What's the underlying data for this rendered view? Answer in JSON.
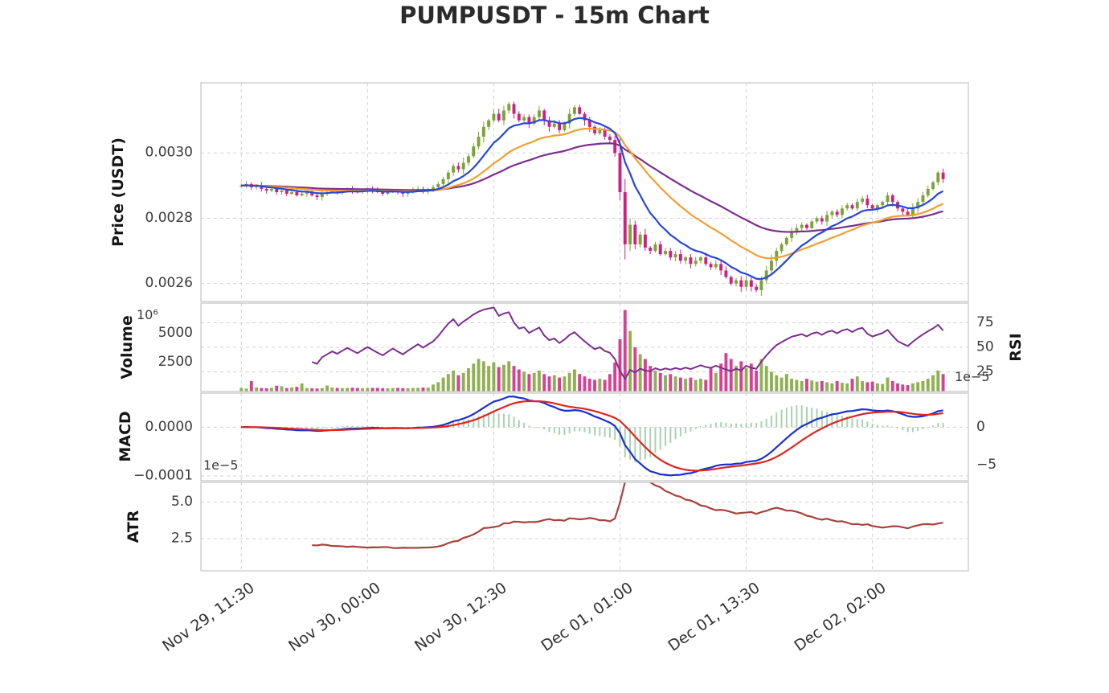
{
  "title": "PUMPUSDT - 15m Chart",
  "colors": {
    "background": "#ffffff",
    "up": "#7ca334",
    "down": "#cf2081",
    "ma_fast": "#2746d8",
    "ma_mid": "#f0a030",
    "ma_slow": "#7b2f8e",
    "rsi": "#7b2f8e",
    "macd_line": "#1b2fd0",
    "signal_line": "#e02420",
    "histogram": "#93c59c",
    "atr": "#a8423a",
    "grid": "#d2d2d2",
    "spine": "#c4c4c4",
    "tick_text": "#3a3a3a"
  },
  "chart_data": {
    "type": "candlestick",
    "title": "PUMPUSDT - 15m Chart",
    "x_ticks": {
      "indices": [
        0,
        25,
        50,
        75,
        100,
        125
      ],
      "labels": [
        "Nov 29, 11:30",
        "Nov 30, 00:00",
        "Nov 30, 12:30",
        "Dec 01, 01:00",
        "Dec 01, 13:30",
        "Dec 02, 02:00"
      ]
    },
    "panels": [
      {
        "id": "price",
        "ylabel": "Price (USDT)",
        "ylim": [
          0.002545,
          0.003215
        ],
        "yticks": [
          [
            0.0026,
            "0.0026"
          ],
          [
            0.0028,
            "0.0028"
          ],
          [
            0.003,
            "0.0030"
          ]
        ]
      },
      {
        "id": "volume",
        "ylabel": "Volume",
        "offset_text": "10⁶",
        "ylim": [
          0,
          7600
        ],
        "yticks": [
          [
            2500,
            "2500"
          ],
          [
            5000,
            "5000"
          ]
        ],
        "right": {
          "label": "RSI",
          "ylim": [
            5,
            95
          ],
          "yticks": [
            [
              25,
              "25"
            ],
            [
              50,
              "50"
            ],
            [
              75,
              "75"
            ]
          ]
        }
      },
      {
        "id": "macd",
        "ylabel": "MACD",
        "ylim": [
          -0.00011,
          7e-05
        ],
        "yticks": [
          [
            0,
            "0.0000"
          ],
          [
            -0.0001,
            "−0.0001"
          ]
        ],
        "right": {
          "offset_text": "1e−5",
          "ylim": [
            -7.07e-05,
            4.5e-05
          ],
          "yticks": [
            [
              0,
              "0"
            ],
            [
              -5e-05,
              "−5"
            ]
          ]
        }
      },
      {
        "id": "atr",
        "ylabel": "ATR",
        "offset_text": "1e−5",
        "ylim": [
          3e-06,
          6.35e-05
        ],
        "yticks": [
          [
            2.5e-05,
            "2.5"
          ],
          [
            5e-05,
            "5.0"
          ]
        ]
      }
    ],
    "indicators": {
      "ma_periods": [
        10,
        25,
        50
      ],
      "macd": [
        12,
        26,
        9
      ],
      "rsi_period": 14,
      "atr_period": 14
    },
    "ohlcv": {
      "price_scale": 1e-05,
      "close": [
        290,
        290.5,
        289.5,
        290,
        289,
        288.5,
        289,
        288,
        288.5,
        287.5,
        288,
        287,
        287.5,
        288,
        287,
        286.5,
        287.5,
        288,
        288.5,
        288,
        288.5,
        289,
        288.5,
        288,
        288.5,
        289,
        288.5,
        288,
        287.5,
        288,
        288.5,
        288,
        287.5,
        288,
        288.5,
        289,
        288.5,
        289,
        289.5,
        290.5,
        292,
        294,
        296,
        295,
        297,
        299,
        302,
        305,
        308,
        310,
        312,
        310,
        313,
        315,
        312,
        310,
        311,
        309,
        311,
        313,
        310,
        308,
        309,
        307,
        309,
        312,
        314,
        312,
        310,
        308,
        306,
        307,
        305,
        304,
        300,
        288,
        272,
        278,
        272,
        275,
        271,
        270,
        272,
        269,
        270,
        268,
        269,
        267,
        268,
        266,
        267,
        268,
        266,
        265,
        266,
        264,
        262,
        260,
        261,
        259,
        261,
        259,
        258,
        261,
        264,
        267,
        270,
        272,
        274,
        276,
        277,
        278,
        277,
        279,
        280,
        279,
        281,
        282,
        281,
        283,
        284,
        283,
        285,
        286,
        284,
        283,
        284,
        285,
        287,
        285,
        283,
        282,
        281,
        283,
        285,
        287,
        289,
        291,
        294,
        292
      ],
      "volume": [
        300,
        250,
        900,
        350,
        300,
        280,
        320,
        500,
        450,
        300,
        350,
        400,
        700,
        300,
        280,
        260,
        300,
        520,
        340,
        310,
        290,
        310,
        330,
        300,
        280,
        300,
        320,
        310,
        290,
        280,
        300,
        310,
        290,
        280,
        300,
        320,
        340,
        330,
        600,
        800,
        1200,
        1500,
        1800,
        1400,
        1600,
        2000,
        2400,
        2800,
        2600,
        2200,
        2500,
        2100,
        2300,
        2600,
        2200,
        1900,
        1700,
        1500,
        1600,
        1800,
        1500,
        1300,
        1400,
        1200,
        1300,
        1600,
        1900,
        1500,
        1300,
        1100,
        1000,
        1100,
        1000,
        1500,
        2500,
        4500,
        7000,
        5200,
        3800,
        3200,
        2800,
        2200,
        1800,
        1600,
        1400,
        1500,
        1300,
        1200,
        1100,
        1200,
        1000,
        1100,
        1000,
        2000,
        1600,
        2400,
        3300,
        2800,
        2200,
        2600,
        2000,
        2400,
        1800,
        2800,
        2200,
        1700,
        1400,
        1200,
        1500,
        1100,
        1000,
        900,
        1100,
        950,
        850,
        900,
        800,
        700,
        900,
        750,
        700,
        1100,
        1300,
        900,
        800,
        850,
        700,
        650,
        1200,
        900,
        700,
        600,
        550,
        700,
        800,
        900,
        1100,
        1400,
        1800,
        1500
      ]
    }
  }
}
